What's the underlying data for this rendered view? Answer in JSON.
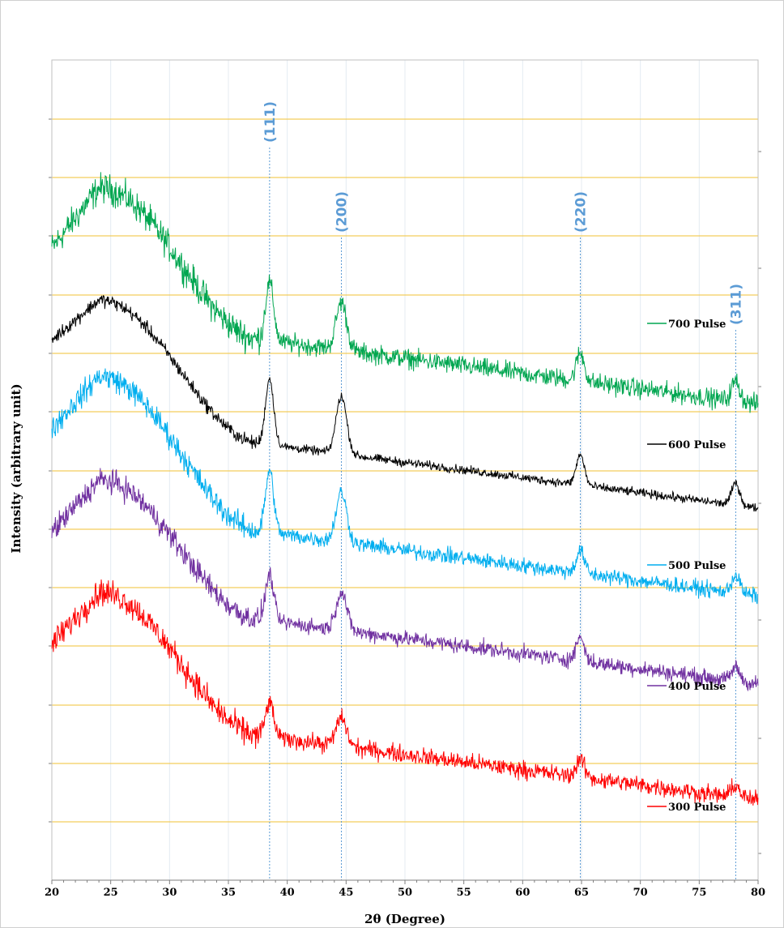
{
  "chart_data": {
    "type": "line",
    "xlabel": "2θ (Degree)",
    "ylabel": "Intensity (arbitrary unit)",
    "xlim": [
      20,
      80
    ],
    "x_ticks": [
      20,
      25,
      30,
      35,
      40,
      45,
      50,
      55,
      60,
      65,
      70,
      75,
      80
    ],
    "y_tick_labels": "none",
    "grid": "horizontal gridlines (gold) and light vertical gridlines",
    "peaks": [
      {
        "label": "(111)",
        "x": 38.5
      },
      {
        "label": "(200)",
        "x": 44.6
      },
      {
        "label": "(220)",
        "x": 64.9
      },
      {
        "label": "(311)",
        "x": 78.1
      }
    ],
    "series": [
      {
        "name": "700 Pulse",
        "color": "#00a650",
        "start": 7.3,
        "hump_peak": 8.8,
        "end": 3.4,
        "peak_heights": [
          1.45,
          1.2,
          0.7,
          0.5
        ],
        "noise": 0.55
      },
      {
        "name": "600 Pulse",
        "color": "#000000",
        "start": 5.0,
        "hump_peak": 6.0,
        "end": 0.8,
        "peak_heights": [
          1.65,
          1.45,
          0.75,
          0.55
        ],
        "noise": 0.25
      },
      {
        "name": "500 Pulse",
        "color": "#00aeef",
        "start": 2.8,
        "hump_peak": 4.1,
        "end": -1.4,
        "peak_heights": [
          1.55,
          1.25,
          0.55,
          0.45
        ],
        "noise": 0.45
      },
      {
        "name": "400 Pulse",
        "color": "#7030a0",
        "start": 0.2,
        "hump_peak": 1.5,
        "end": -3.6,
        "peak_heights": [
          1.15,
          0.95,
          0.6,
          0.35
        ],
        "noise": 0.45
      },
      {
        "name": "300 Pulse",
        "color": "#ff0000",
        "start": -2.6,
        "hump_peak": -1.3,
        "end": -6.5,
        "peak_heights": [
          0.85,
          0.7,
          0.45,
          0.3
        ],
        "noise": 0.5
      }
    ]
  }
}
